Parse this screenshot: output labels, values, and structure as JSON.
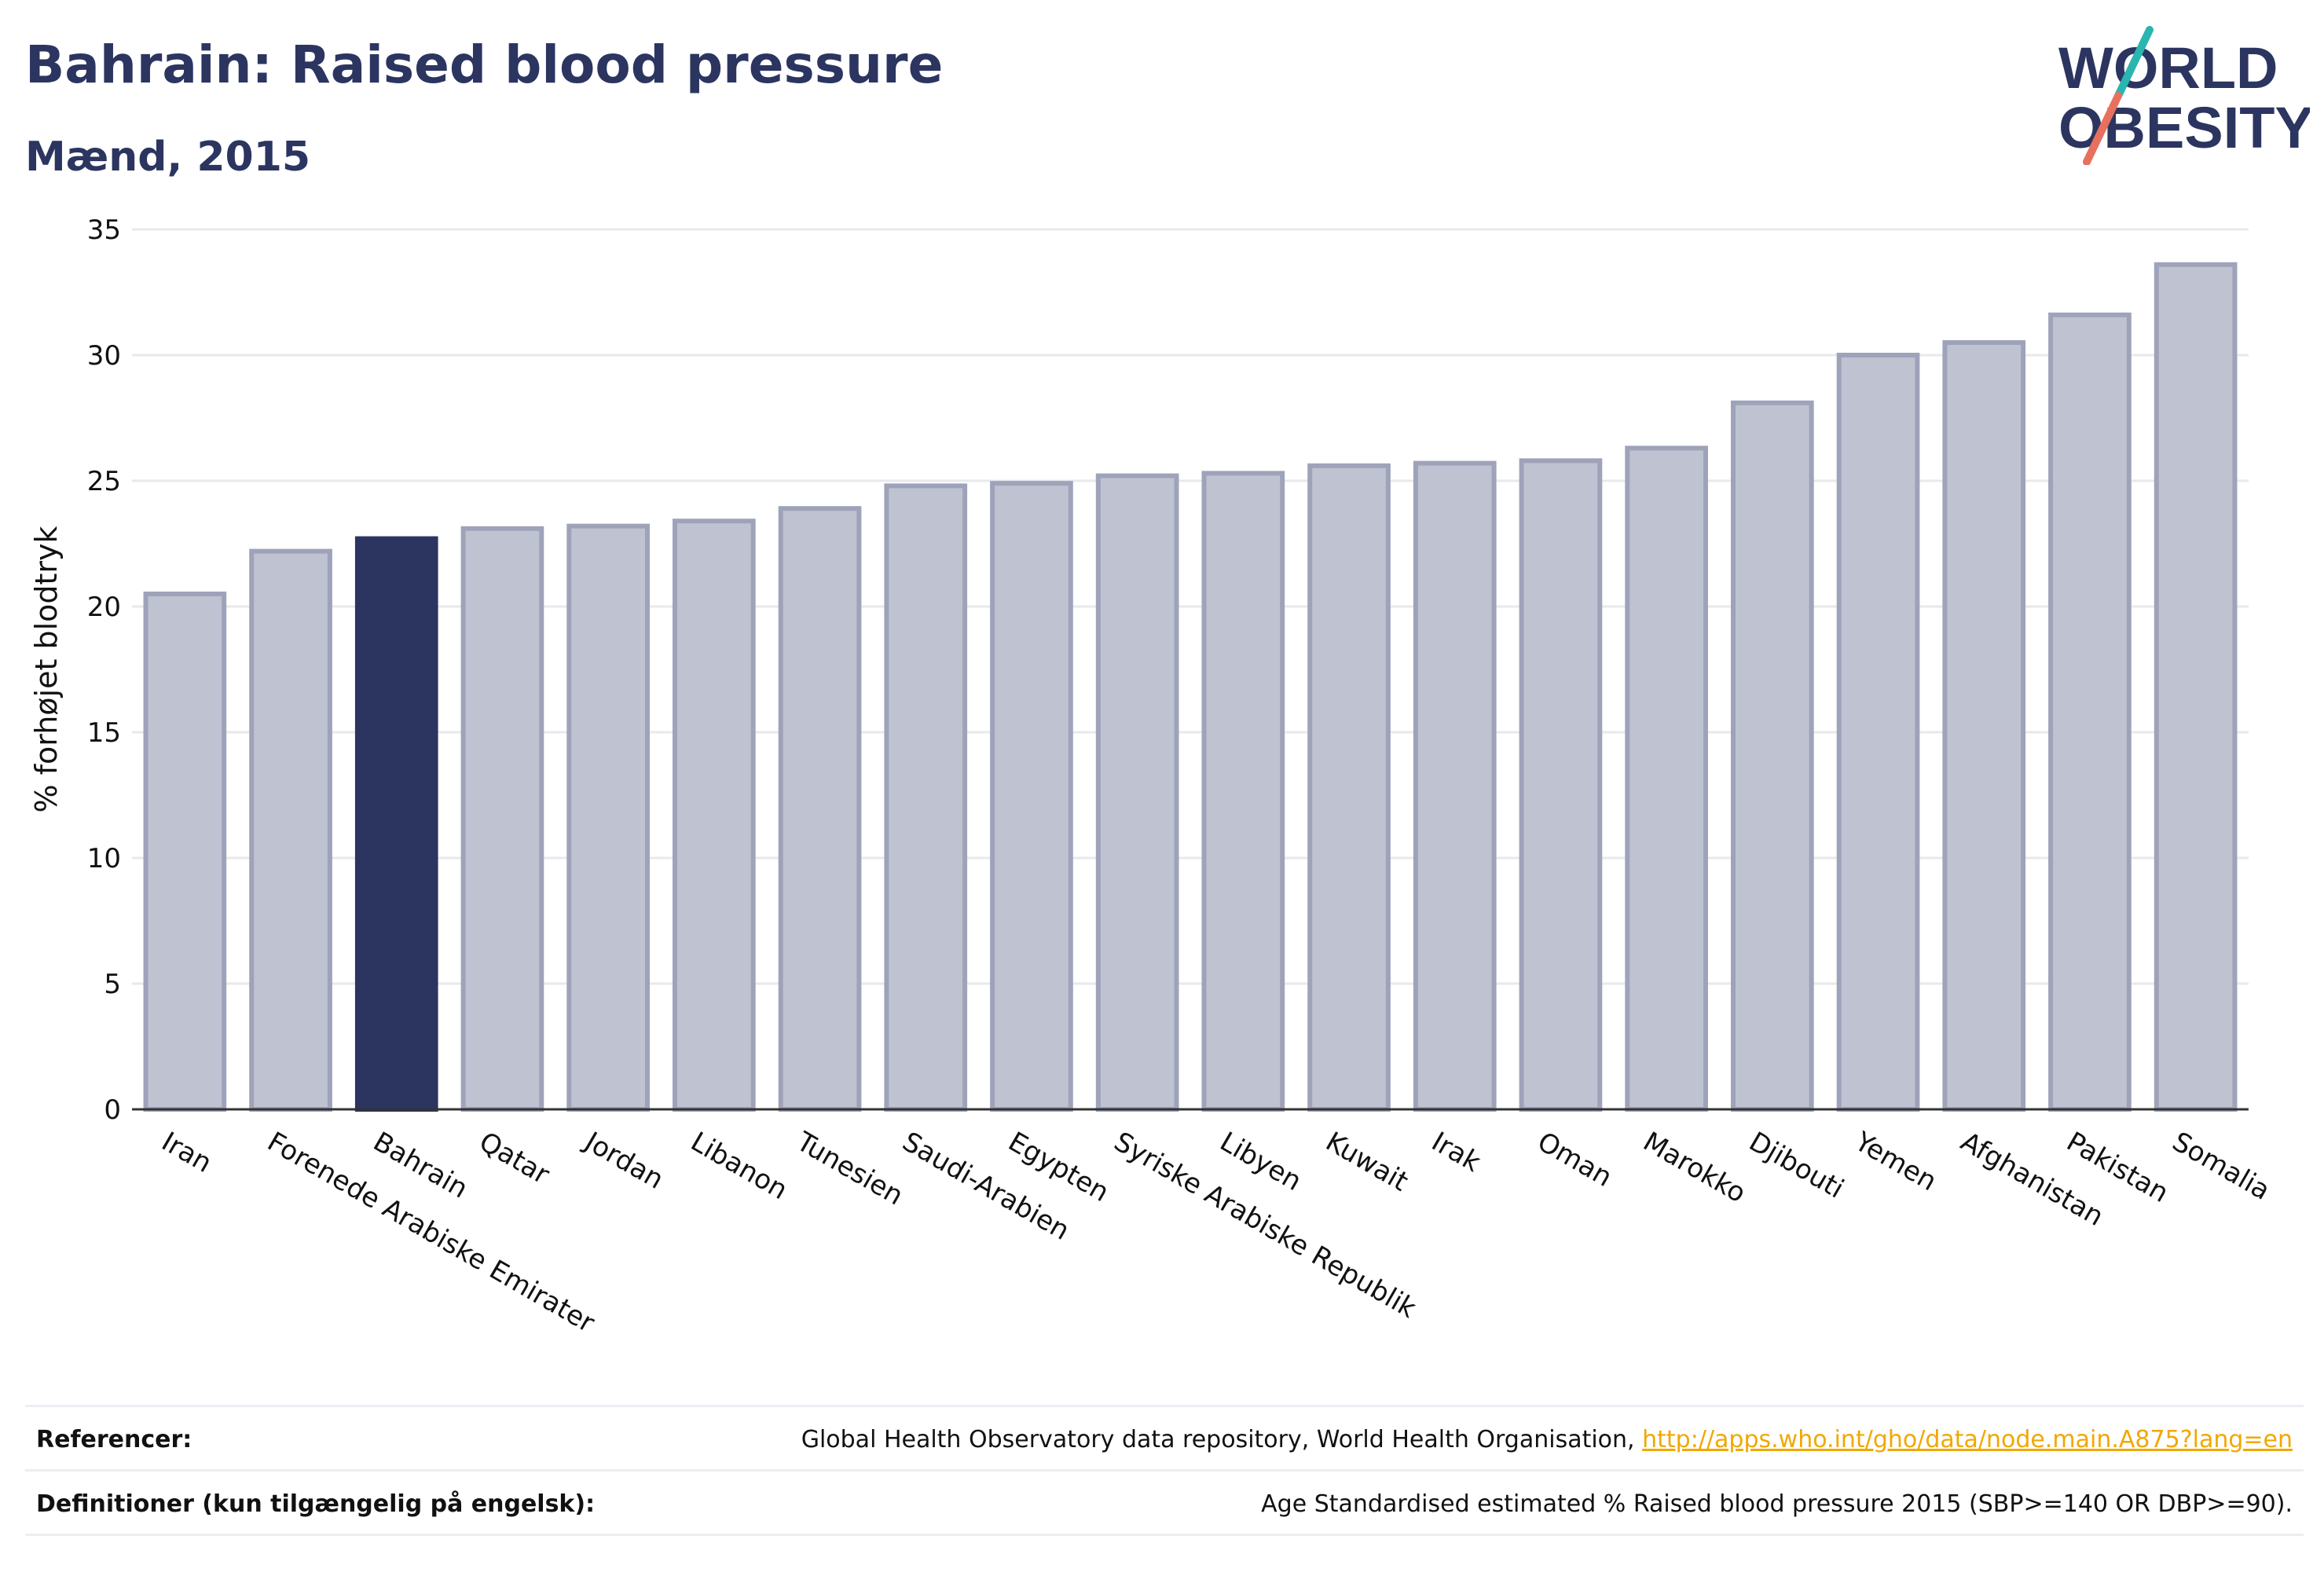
{
  "header": {
    "title": "Bahrain: Raised blood pressure",
    "subtitle": "Mænd, 2015"
  },
  "logo": {
    "line1": "WORLD",
    "line2": "OBESITY",
    "accent_colors": [
      "#2ab5b0",
      "#e8705f"
    ]
  },
  "colors": {
    "highlight": "#2b3560",
    "bar_fill": "#bfc2d0",
    "bar_stroke": "#9ea3ba",
    "grid": "#e8e9ee"
  },
  "chart_data": {
    "type": "bar",
    "title": "Bahrain: Raised blood pressure",
    "subtitle": "Mænd, 2015",
    "xlabel": "",
    "ylabel": "% forhøjet blodtryk",
    "ylim": [
      0,
      35
    ],
    "yticks": [
      0,
      5,
      10,
      15,
      20,
      25,
      30,
      35
    ],
    "grid": true,
    "highlight": "Bahrain",
    "categories": [
      "Iran",
      "Forenede Arabiske Emirater",
      "Bahrain",
      "Qatar",
      "Jordan",
      "Libanon",
      "Tunesien",
      "Saudi-Arabien",
      "Egypten",
      "Syriske Arabiske Republik",
      "Libyen",
      "Kuwait",
      "Irak",
      "Oman",
      "Marokko",
      "Djibouti",
      "Yemen",
      "Afghanistan",
      "Pakistan",
      "Somalia"
    ],
    "values": [
      20.5,
      22.2,
      22.7,
      23.1,
      23.2,
      23.4,
      23.9,
      24.8,
      24.9,
      25.2,
      25.3,
      25.6,
      25.7,
      25.8,
      26.3,
      28.1,
      30.0,
      30.5,
      31.6,
      33.6
    ]
  },
  "footer": {
    "references_label": "Referencer:",
    "references_text": "Global Health Observatory data repository, World Health Organisation,",
    "references_link": "http://apps.who.int/gho/data/node.main.A875?lang=en",
    "definitions_label": "Definitioner (kun tilgængelig på engelsk):",
    "definitions_text": "Age Standardised estimated % Raised blood pressure 2015 (SBP>=140 OR DBP>=90)."
  }
}
